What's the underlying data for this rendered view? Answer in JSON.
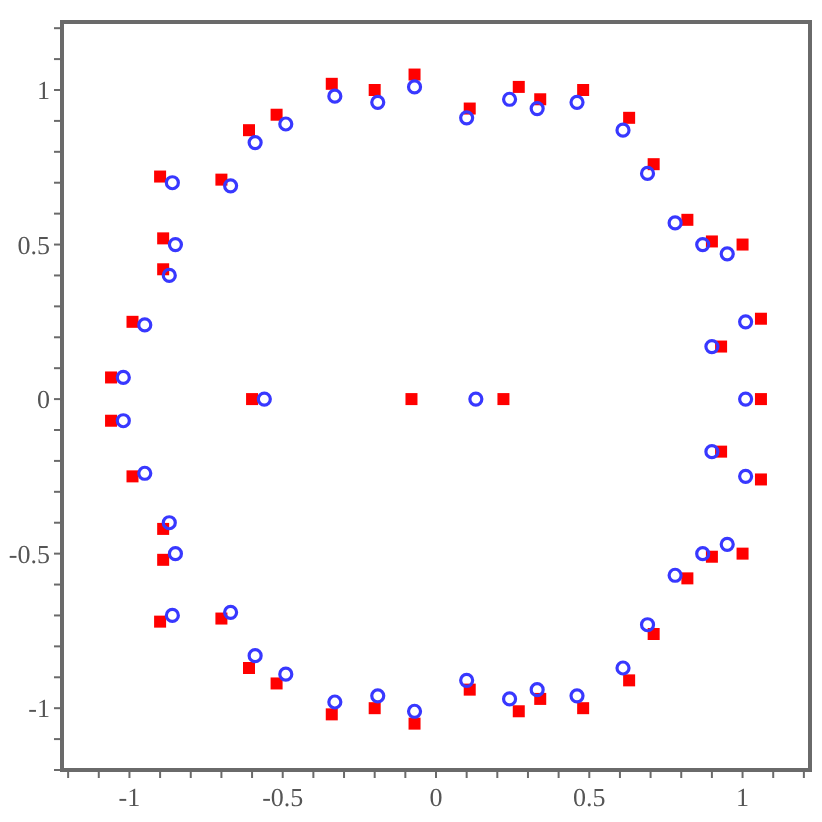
{
  "chart_data": {
    "type": "scatter",
    "xlim": [
      -1.22,
      1.22
    ],
    "ylim": [
      -1.2,
      1.22
    ],
    "xticks": [
      {
        "value": -1.2,
        "label": null
      },
      {
        "value": -1.1,
        "label": null
      },
      -1,
      {
        "value": -0.9,
        "label": null
      },
      {
        "value": -0.8,
        "label": null
      },
      {
        "value": -0.7,
        "label": null
      },
      {
        "value": -0.6,
        "label": null
      },
      -0.5,
      {
        "value": -0.4,
        "label": null
      },
      {
        "value": -0.3,
        "label": null
      },
      {
        "value": -0.2,
        "label": null
      },
      {
        "value": -0.1,
        "label": null
      },
      0,
      {
        "value": 0.1,
        "label": null
      },
      {
        "value": 0.2,
        "label": null
      },
      {
        "value": 0.3,
        "label": null
      },
      {
        "value": 0.4,
        "label": null
      },
      0.5,
      {
        "value": 0.6,
        "label": null
      },
      {
        "value": 0.7,
        "label": null
      },
      {
        "value": 0.8,
        "label": null
      },
      {
        "value": 0.9,
        "label": null
      },
      1,
      {
        "value": 1.1,
        "label": null
      },
      {
        "value": 1.2,
        "label": null
      }
    ],
    "yticks": [
      {
        "value": -1.2,
        "label": null
      },
      {
        "value": -1.1,
        "label": null
      },
      -1,
      {
        "value": -0.9,
        "label": null
      },
      {
        "value": -0.8,
        "label": null
      },
      {
        "value": -0.7,
        "label": null
      },
      {
        "value": -0.6,
        "label": null
      },
      -0.5,
      {
        "value": -0.4,
        "label": null
      },
      {
        "value": -0.3,
        "label": null
      },
      {
        "value": -0.2,
        "label": null
      },
      {
        "value": -0.1,
        "label": null
      },
      0,
      {
        "value": 0.1,
        "label": null
      },
      {
        "value": 0.2,
        "label": null
      },
      {
        "value": 0.3,
        "label": null
      },
      {
        "value": 0.4,
        "label": null
      },
      0.5,
      {
        "value": 0.6,
        "label": null
      },
      {
        "value": 0.7,
        "label": null
      },
      {
        "value": 0.8,
        "label": null
      },
      {
        "value": 0.9,
        "label": null
      },
      1,
      {
        "value": 1.1,
        "label": null
      },
      {
        "value": 1.2,
        "label": null
      }
    ],
    "series": [
      {
        "color": "#ff0000",
        "marker": "square",
        "x": [
          -1.06,
          -0.99,
          -0.89,
          -0.89,
          -0.9,
          -0.7,
          -0.61,
          -0.52,
          -0.34,
          -0.2,
          -0.07,
          0.11,
          0.27,
          0.34,
          0.48,
          0.63,
          0.71,
          0.82,
          0.9,
          1.0,
          1.06,
          0.93,
          -0.6,
          -0.08,
          0.22,
          1.06,
          -1.06,
          -0.99,
          -0.89,
          -0.89,
          -0.9,
          -0.7,
          -0.61,
          -0.52,
          -0.34,
          -0.2,
          -0.07,
          0.11,
          0.27,
          0.34,
          0.48,
          0.63,
          0.71,
          0.82,
          0.9,
          1.0,
          1.06,
          0.93
        ],
        "values": [
          0.07,
          0.25,
          0.42,
          0.52,
          0.72,
          0.71,
          0.87,
          0.92,
          1.02,
          1.0,
          1.05,
          0.94,
          1.01,
          0.97,
          1.0,
          0.91,
          0.76,
          0.58,
          0.51,
          0.5,
          0.26,
          0.17,
          0,
          0,
          0,
          0,
          -0.07,
          -0.25,
          -0.42,
          -0.52,
          -0.72,
          -0.71,
          -0.87,
          -0.92,
          -1.02,
          -1.0,
          -1.05,
          -0.94,
          -1.01,
          -0.97,
          -1.0,
          -0.91,
          -0.76,
          -0.58,
          -0.51,
          -0.5,
          -0.26,
          -0.17
        ]
      },
      {
        "color": "#3838ff",
        "marker": "circle",
        "x": [
          -1.02,
          -0.95,
          -0.87,
          -0.85,
          -0.86,
          -0.67,
          -0.59,
          -0.49,
          -0.33,
          -0.19,
          -0.07,
          0.1,
          0.24,
          0.33,
          0.46,
          0.61,
          0.69,
          0.78,
          0.87,
          0.95,
          1.01,
          0.9,
          -0.56,
          0.13,
          1.01,
          -1.02,
          -0.95,
          -0.87,
          -0.85,
          -0.86,
          -0.67,
          -0.59,
          -0.49,
          -0.33,
          -0.19,
          -0.07,
          0.1,
          0.24,
          0.33,
          0.46,
          0.61,
          0.69,
          0.78,
          0.87,
          0.95,
          1.01,
          0.9
        ],
        "values": [
          0.07,
          0.24,
          0.4,
          0.5,
          0.7,
          0.69,
          0.83,
          0.89,
          0.98,
          0.96,
          1.01,
          0.91,
          0.97,
          0.94,
          0.96,
          0.87,
          0.73,
          0.57,
          0.5,
          0.47,
          0.25,
          0.17,
          0,
          0,
          0,
          -0.07,
          -0.24,
          -0.4,
          -0.5,
          -0.7,
          -0.69,
          -0.83,
          -0.89,
          -0.98,
          -0.96,
          -1.01,
          -0.91,
          -0.97,
          -0.94,
          -0.96,
          -0.87,
          -0.73,
          -0.57,
          -0.5,
          -0.47,
          -0.25,
          -0.17
        ]
      }
    ]
  }
}
